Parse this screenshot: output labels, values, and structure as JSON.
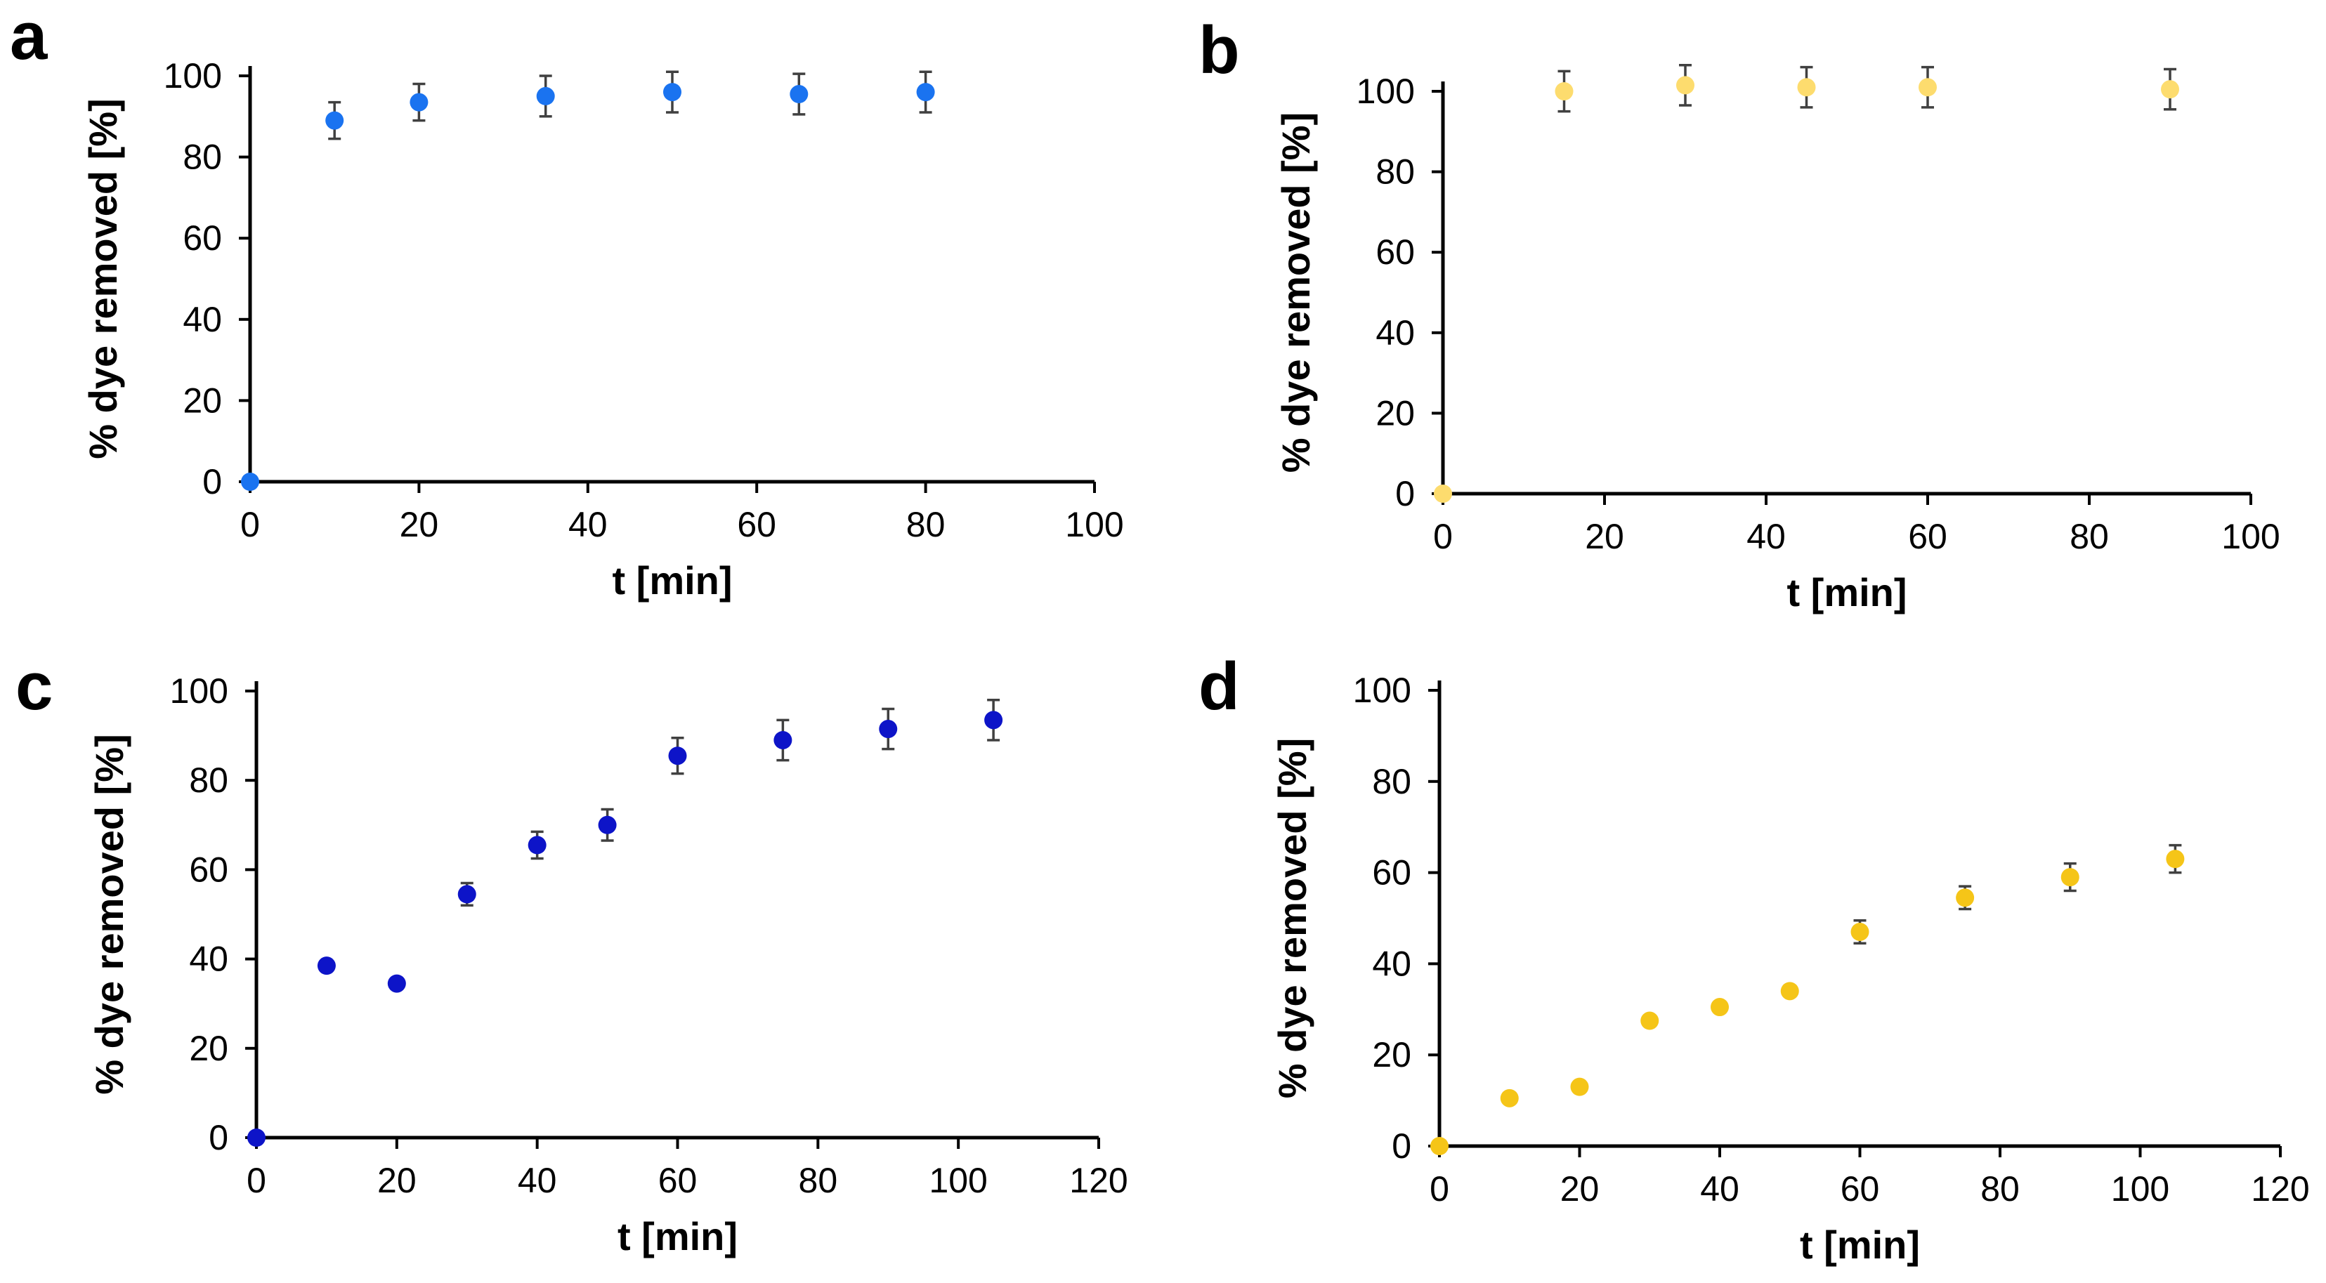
{
  "chart_data": [
    {
      "panel": "a",
      "type": "scatter",
      "title": "",
      "xlabel": "t [min]",
      "ylabel": "% dye removed [%]",
      "xlim": [
        0,
        100
      ],
      "ylim": [
        0,
        100
      ],
      "xticks": [
        0,
        20,
        40,
        60,
        80,
        100
      ],
      "yticks": [
        0,
        20,
        40,
        60,
        80,
        100
      ],
      "color": "#1a73f0",
      "series": [
        {
          "name": "a",
          "x": [
            0,
            10,
            20,
            35,
            50,
            65,
            80
          ],
          "y": [
            0,
            89,
            93.5,
            95,
            96,
            95.5,
            96
          ],
          "err": [
            0,
            4.5,
            4.5,
            5,
            5,
            5,
            5
          ]
        }
      ]
    },
    {
      "panel": "b",
      "type": "scatter",
      "title": "",
      "xlabel": "t [min]",
      "ylabel": "% dye removed [%]",
      "xlim": [
        0,
        100
      ],
      "ylim": [
        0,
        100
      ],
      "xticks": [
        0,
        20,
        40,
        60,
        80,
        100
      ],
      "yticks": [
        0,
        20,
        40,
        60,
        80,
        100
      ],
      "color": "#fddc6e",
      "series": [
        {
          "name": "b",
          "x": [
            0,
            15,
            30,
            45,
            60,
            90
          ],
          "y": [
            0,
            100,
            101.5,
            101,
            101,
            100.5
          ],
          "err": [
            0,
            5,
            5,
            5,
            5,
            5
          ]
        }
      ]
    },
    {
      "panel": "c",
      "type": "scatter",
      "title": "",
      "xlabel": "t [min]",
      "ylabel": "% dye removed [%]",
      "xlim": [
        0,
        120
      ],
      "ylim": [
        0,
        100
      ],
      "xticks": [
        0,
        20,
        40,
        60,
        80,
        100,
        120
      ],
      "yticks": [
        0,
        20,
        40,
        60,
        80,
        100
      ],
      "color": "#0d14c8",
      "series": [
        {
          "name": "c",
          "x": [
            0,
            10,
            20,
            30,
            40,
            50,
            60,
            75,
            90,
            105
          ],
          "y": [
            0,
            38.5,
            34.5,
            54.5,
            65.5,
            70,
            85.5,
            89,
            91.5,
            93.5
          ],
          "err": [
            0,
            0,
            0,
            2.5,
            3,
            3.5,
            4,
            4.5,
            4.5,
            4.5
          ]
        }
      ]
    },
    {
      "panel": "d",
      "type": "scatter",
      "title": "",
      "xlabel": "t [min]",
      "ylabel": "% dye removed [%]",
      "xlim": [
        0,
        120
      ],
      "ylim": [
        0,
        100
      ],
      "xticks": [
        0,
        20,
        40,
        60,
        80,
        100,
        120
      ],
      "yticks": [
        0,
        20,
        40,
        60,
        80,
        100
      ],
      "color": "#f5c518",
      "series": [
        {
          "name": "d",
          "x": [
            0,
            10,
            20,
            30,
            40,
            50,
            60,
            75,
            90,
            105
          ],
          "y": [
            0,
            10.5,
            13,
            27.5,
            30.5,
            34,
            47,
            54.5,
            59,
            63
          ],
          "err": [
            0,
            0,
            0,
            0,
            0,
            0,
            2.5,
            2.5,
            3,
            3
          ]
        }
      ]
    }
  ]
}
